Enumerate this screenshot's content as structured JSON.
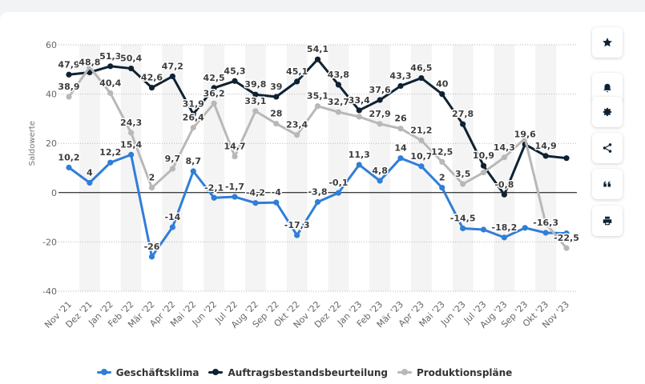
{
  "sidebar": {
    "buttons": [
      {
        "name": "favorite-button",
        "icon": "star-icon"
      },
      {
        "name": "notification-button",
        "icon": "bell-icon"
      },
      {
        "name": "settings-button",
        "icon": "gear-icon"
      },
      {
        "name": "share-button",
        "icon": "share-icon"
      },
      {
        "name": "cite-button",
        "icon": "quote-icon"
      },
      {
        "name": "print-button",
        "icon": "printer-icon"
      }
    ]
  },
  "chart_data": {
    "type": "line",
    "ylabel": "Saldowerte",
    "ylim": [
      -40,
      60
    ],
    "yticks": [
      -40,
      -20,
      0,
      20,
      40,
      60
    ],
    "grid": true,
    "legend_position": "bottom",
    "categories": [
      "Nov '21",
      "Dez '21",
      "Jan '22",
      "Feb '22",
      "Mär '22",
      "Apr '22",
      "Mai '22",
      "Jun '22",
      "Jul '22",
      "Aug '22",
      "Sep '22",
      "Okt '22",
      "Nov '22",
      "Dez '22",
      "Jan '23",
      "Feb '23",
      "Mär '23",
      "Apr '23",
      "Mai '23",
      "Jun '23",
      "Jul '23",
      "Aug '23",
      "Sep '23",
      "Okt '23",
      "Nov '23"
    ],
    "series": [
      {
        "name": "Geschäftsklima",
        "color": "#2f7ed8",
        "values": [
          10.2,
          4,
          12.2,
          15.4,
          -26,
          -14,
          8.7,
          -2.1,
          -1.7,
          -4.2,
          -4,
          -17.3,
          -3.8,
          -0.1,
          11.3,
          4.8,
          14,
          10.7,
          2,
          -14.5,
          -15,
          -18.2,
          -14.3,
          -16.3,
          -16.5
        ],
        "labels": [
          "10,2",
          "4",
          "12,2",
          "15,4",
          "-26",
          "-14",
          "8,7",
          "-2,1",
          "-1,7",
          "-4,2",
          "-4",
          "-17,3",
          "-3,8",
          "-0,1",
          "11,3",
          "4,8",
          "14",
          "10,7",
          "2",
          "-14,5",
          "",
          "-18,2",
          "",
          "-16,3",
          ""
        ]
      },
      {
        "name": "Auftragsbestandsbeurteilung",
        "color": "#0e2233",
        "values": [
          47.9,
          48.8,
          51.3,
          50.4,
          42.6,
          47.2,
          31.9,
          42.5,
          45.3,
          39.8,
          38.9,
          45.1,
          54.1,
          43.8,
          33.4,
          37.6,
          43.3,
          46.5,
          40,
          27.8,
          10.9,
          -0.8,
          19.6,
          14.9,
          14
        ],
        "labels": [
          "47,9",
          "48,8",
          "51,3",
          "50,4",
          "42,6",
          "47,2",
          "31,9",
          "42,5",
          "45,3",
          "39,8",
          "39",
          "45,1",
          "54,1",
          "43,8",
          "33,4",
          "37,6",
          "43,3",
          "46,5",
          "40",
          "27,8",
          "10,9",
          "-0,8",
          "19,6",
          "14,9",
          ""
        ]
      },
      {
        "name": "Produktionspläne",
        "color": "#b8b8b8",
        "values": [
          38.9,
          51,
          40.4,
          24.3,
          2,
          9.7,
          26.4,
          36.2,
          14.7,
          33.1,
          28,
          23.4,
          35.1,
          32.7,
          30.8,
          27.9,
          26,
          21.2,
          12.5,
          3.5,
          8.2,
          14.3,
          22,
          -12.5,
          -22.5
        ],
        "labels": [
          "38,9",
          "",
          "40,4",
          "24,3",
          "2",
          "9,7",
          "26,4",
          "36,2",
          "14,7",
          "33,1",
          "28",
          "23,4",
          "35,1",
          "32,7",
          "",
          "27,9",
          "26",
          "21,2",
          "12,5",
          "3,5",
          "",
          "14,3",
          "",
          "",
          "-22,5"
        ]
      }
    ]
  }
}
